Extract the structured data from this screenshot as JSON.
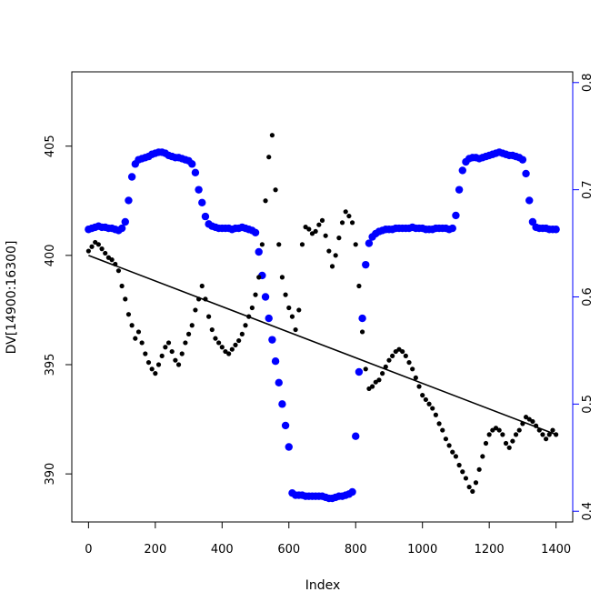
{
  "chart_data": {
    "type": "scatter",
    "xlabel": "Index",
    "ylabel": "DV[14900:16300]",
    "xlim": [
      -50,
      1450
    ],
    "ylim_left": [
      387.8,
      408.4
    ],
    "ylim_right": [
      0.39,
      0.81
    ],
    "x_ticks": [
      0,
      200,
      400,
      600,
      800,
      1000,
      1200,
      1400
    ],
    "y_ticks_left": [
      390,
      395,
      400,
      405
    ],
    "y_ticks_right": [
      0.4,
      0.5,
      0.6,
      0.7,
      0.8
    ],
    "right_axis_color": "#0000ff",
    "series": [
      {
        "axis": "left",
        "color": "#000000",
        "marker": "filled-circle",
        "x": [
          0,
          10,
          20,
          30,
          40,
          50,
          60,
          70,
          80,
          90,
          100,
          110,
          120,
          130,
          140,
          150,
          160,
          170,
          180,
          190,
          200,
          210,
          220,
          230,
          240,
          250,
          260,
          270,
          280,
          290,
          300,
          310,
          320,
          330,
          340,
          350,
          360,
          370,
          380,
          390,
          400,
          410,
          420,
          430,
          440,
          450,
          460,
          470,
          480,
          490,
          500,
          510,
          520,
          530,
          540,
          550,
          560,
          570,
          580,
          590,
          600,
          610,
          620,
          630,
          640,
          650,
          660,
          670,
          680,
          690,
          700,
          710,
          720,
          730,
          740,
          750,
          760,
          770,
          780,
          790,
          800,
          810,
          820,
          830,
          840,
          850,
          860,
          870,
          880,
          890,
          900,
          910,
          920,
          930,
          940,
          950,
          960,
          970,
          980,
          990,
          1000,
          1010,
          1020,
          1030,
          1040,
          1050,
          1060,
          1070,
          1080,
          1090,
          1100,
          1110,
          1120,
          1130,
          1140,
          1150,
          1160,
          1170,
          1180,
          1190,
          1200,
          1210,
          1220,
          1230,
          1240,
          1250,
          1260,
          1270,
          1280,
          1290,
          1300,
          1310,
          1320,
          1330,
          1340,
          1350,
          1360,
          1370,
          1380,
          1390,
          1400
        ],
        "y": [
          400.2,
          400.4,
          400.6,
          400.5,
          400.3,
          400.1,
          399.9,
          399.8,
          399.6,
          399.3,
          398.6,
          398.0,
          397.3,
          396.8,
          396.2,
          396.5,
          396.0,
          395.5,
          395.1,
          394.8,
          394.6,
          395.0,
          395.4,
          395.8,
          396.0,
          395.6,
          395.2,
          395.0,
          395.5,
          396.0,
          396.4,
          396.8,
          397.5,
          398.0,
          398.6,
          398.0,
          397.2,
          396.6,
          396.2,
          396.0,
          395.8,
          395.6,
          395.5,
          395.7,
          395.9,
          396.1,
          396.4,
          396.8,
          397.2,
          397.6,
          398.2,
          399.0,
          400.5,
          402.5,
          404.5,
          405.5,
          403.0,
          400.5,
          399.0,
          398.2,
          397.6,
          397.2,
          396.6,
          397.5,
          400.5,
          401.3,
          401.2,
          401.0,
          401.1,
          401.4,
          401.6,
          400.9,
          400.2,
          399.5,
          400.0,
          400.8,
          401.5,
          402.0,
          401.8,
          401.5,
          400.5,
          398.6,
          396.5,
          394.8,
          393.9,
          394.0,
          394.2,
          394.3,
          394.6,
          394.9,
          395.2,
          395.4,
          395.6,
          395.7,
          395.6,
          395.4,
          395.1,
          394.8,
          394.4,
          394.0,
          393.6,
          393.4,
          393.2,
          393.0,
          392.7,
          392.3,
          392.0,
          391.6,
          391.3,
          391.0,
          390.8,
          390.4,
          390.1,
          389.8,
          389.4,
          389.2,
          389.6,
          390.2,
          390.8,
          391.4,
          391.8,
          392.0,
          392.1,
          392.0,
          391.8,
          391.4,
          391.2,
          391.5,
          391.8,
          392.0,
          392.3,
          392.6,
          392.5,
          392.4,
          392.2,
          392.0,
          391.8,
          391.6,
          391.8,
          392.0,
          391.8
        ]
      },
      {
        "axis": "right",
        "color": "#0000ff",
        "marker": "filled-circle",
        "x": [
          0,
          10,
          20,
          30,
          40,
          50,
          60,
          70,
          80,
          90,
          100,
          110,
          120,
          130,
          140,
          150,
          160,
          170,
          180,
          190,
          200,
          210,
          220,
          230,
          240,
          250,
          260,
          270,
          280,
          290,
          300,
          310,
          320,
          330,
          340,
          350,
          360,
          370,
          380,
          390,
          400,
          410,
          420,
          430,
          440,
          450,
          460,
          470,
          480,
          490,
          500,
          510,
          520,
          530,
          540,
          550,
          560,
          570,
          580,
          590,
          600,
          610,
          620,
          630,
          640,
          650,
          660,
          670,
          680,
          690,
          700,
          710,
          720,
          730,
          740,
          750,
          760,
          770,
          780,
          790,
          800,
          810,
          820,
          830,
          840,
          850,
          860,
          870,
          880,
          890,
          900,
          910,
          920,
          930,
          940,
          950,
          960,
          970,
          980,
          990,
          1000,
          1010,
          1020,
          1030,
          1040,
          1050,
          1060,
          1070,
          1080,
          1090,
          1100,
          1110,
          1120,
          1130,
          1140,
          1150,
          1160,
          1170,
          1180,
          1190,
          1200,
          1210,
          1220,
          1230,
          1240,
          1250,
          1260,
          1270,
          1280,
          1290,
          1300,
          1310,
          1320,
          1330,
          1340,
          1350,
          1360,
          1370,
          1380,
          1390,
          1400
        ],
        "y": [
          0.663,
          0.664,
          0.665,
          0.666,
          0.665,
          0.665,
          0.664,
          0.664,
          0.663,
          0.662,
          0.664,
          0.67,
          0.69,
          0.712,
          0.724,
          0.728,
          0.729,
          0.73,
          0.731,
          0.733,
          0.734,
          0.735,
          0.735,
          0.734,
          0.732,
          0.731,
          0.73,
          0.73,
          0.729,
          0.728,
          0.727,
          0.724,
          0.716,
          0.7,
          0.688,
          0.675,
          0.668,
          0.666,
          0.665,
          0.664,
          0.664,
          0.664,
          0.664,
          0.663,
          0.664,
          0.664,
          0.665,
          0.664,
          0.663,
          0.662,
          0.66,
          0.642,
          0.62,
          0.6,
          0.58,
          0.56,
          0.54,
          0.52,
          0.5,
          0.48,
          0.46,
          0.417,
          0.415,
          0.415,
          0.415,
          0.414,
          0.414,
          0.414,
          0.414,
          0.414,
          0.414,
          0.413,
          0.412,
          0.412,
          0.413,
          0.414,
          0.414,
          0.415,
          0.416,
          0.418,
          0.47,
          0.53,
          0.58,
          0.63,
          0.65,
          0.656,
          0.659,
          0.661,
          0.662,
          0.663,
          0.663,
          0.663,
          0.664,
          0.664,
          0.664,
          0.664,
          0.664,
          0.665,
          0.664,
          0.664,
          0.664,
          0.663,
          0.663,
          0.663,
          0.664,
          0.664,
          0.664,
          0.664,
          0.663,
          0.664,
          0.676,
          0.7,
          0.718,
          0.726,
          0.729,
          0.73,
          0.73,
          0.729,
          0.73,
          0.731,
          0.732,
          0.733,
          0.734,
          0.735,
          0.734,
          0.733,
          0.732,
          0.732,
          0.731,
          0.73,
          0.728,
          0.715,
          0.69,
          0.67,
          0.665,
          0.664,
          0.664,
          0.664,
          0.663,
          0.663,
          0.663
        ]
      }
    ],
    "fit_line": {
      "axis": "left",
      "color": "#000000",
      "x": [
        0,
        1400
      ],
      "y": [
        400.0,
        391.8
      ]
    }
  }
}
